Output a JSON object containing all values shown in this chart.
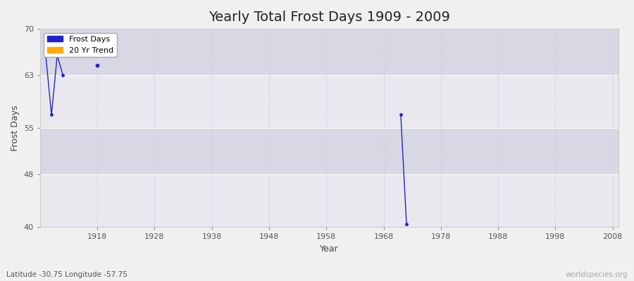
{
  "title": "Yearly Total Frost Days 1909 - 2009",
  "xlabel": "Year",
  "ylabel": "Frost Days",
  "subtitle": "Latitude -30.75 Longitude -57.75",
  "watermark": "worldspecies.org",
  "xlim": [
    1908,
    2009
  ],
  "ylim": [
    40,
    70
  ],
  "yticks": [
    40,
    48,
    55,
    63,
    70
  ],
  "xticks": [
    1918,
    1928,
    1938,
    1948,
    1958,
    1968,
    1978,
    1988,
    1998,
    2008
  ],
  "line_segments_early": [
    [
      1909,
      66.0
    ],
    [
      1910,
      57.0
    ],
    [
      1911,
      66.0
    ],
    [
      1912,
      63.0
    ]
  ],
  "point_lone": [
    1918,
    64.5
  ],
  "line_segments_late": [
    [
      1971,
      57.0
    ],
    [
      1972,
      40.5
    ]
  ],
  "frost_color": "#2222cc",
  "trend_color": "#ffaa00",
  "fig_bg": "#f0f0f0",
  "plot_bg_light": "#e8e8ee",
  "plot_bg_dark": "#d8d8e4",
  "grid_color_solid": "#ffffff",
  "grid_color_dash": "#ccccdd",
  "title_fontsize": 14,
  "axis_fontsize": 9,
  "tick_fontsize": 8
}
